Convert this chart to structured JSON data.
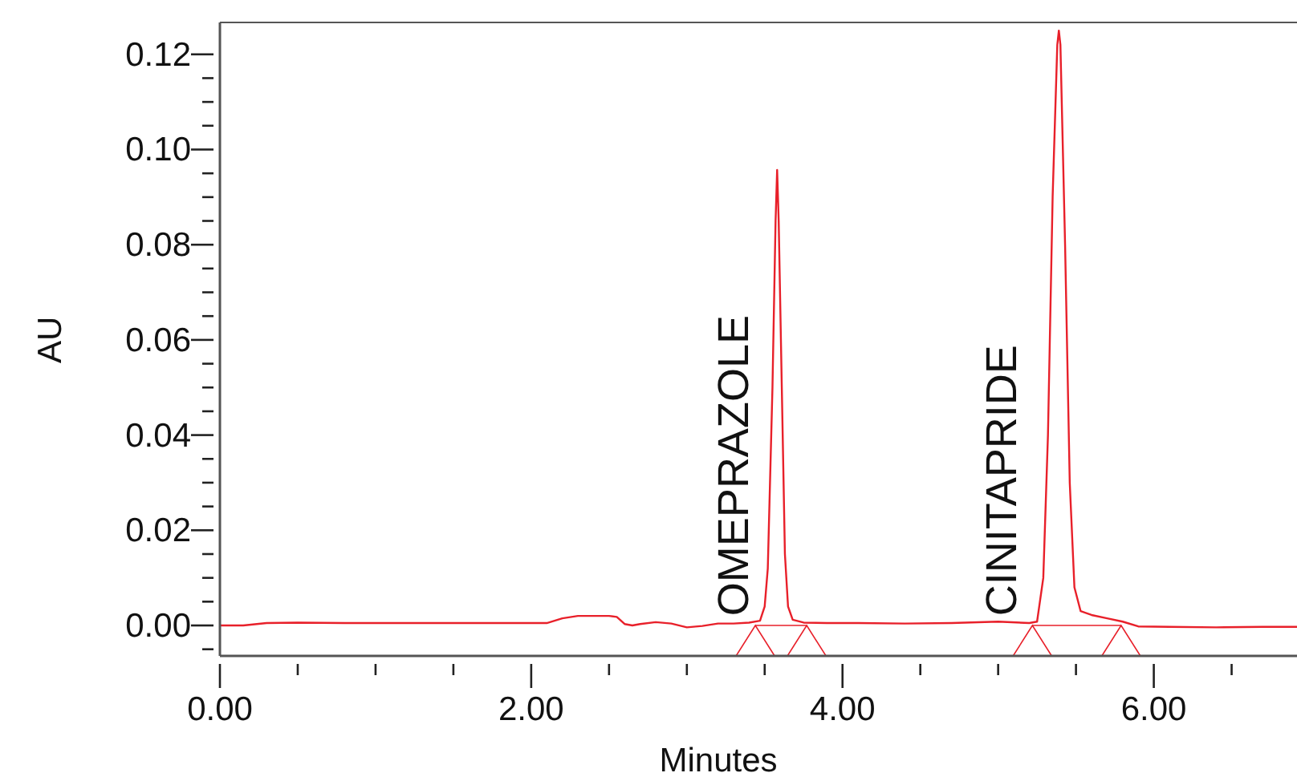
{
  "chart_data": {
    "type": "line",
    "xlabel": "Minutes",
    "ylabel": "AU",
    "xlim": [
      0,
      6.92
    ],
    "ylim": [
      -0.0064,
      0.1267
    ],
    "xticks": [
      {
        "value": 0,
        "label": "0.00"
      },
      {
        "value": 0.5,
        "label": null
      },
      {
        "value": 1,
        "label": null
      },
      {
        "value": 1.5,
        "label": null
      },
      {
        "value": 2,
        "label": "2.00"
      },
      {
        "value": 2.5,
        "label": null
      },
      {
        "value": 3,
        "label": null
      },
      {
        "value": 3.5,
        "label": null
      },
      {
        "value": 4,
        "label": "4.00"
      },
      {
        "value": 4.5,
        "label": null
      },
      {
        "value": 5,
        "label": null
      },
      {
        "value": 5.5,
        "label": null
      },
      {
        "value": 6,
        "label": "6.00"
      },
      {
        "value": 6.5,
        "label": null
      }
    ],
    "yticks": [
      {
        "value": -0.005,
        "label": null
      },
      {
        "value": 0,
        "label": "0.00"
      },
      {
        "value": 0.005,
        "label": null
      },
      {
        "value": 0.01,
        "label": null
      },
      {
        "value": 0.015,
        "label": null
      },
      {
        "value": 0.02,
        "label": "0.02"
      },
      {
        "value": 0.025,
        "label": null
      },
      {
        "value": 0.03,
        "label": null
      },
      {
        "value": 0.035,
        "label": null
      },
      {
        "value": 0.04,
        "label": "0.04"
      },
      {
        "value": 0.045,
        "label": null
      },
      {
        "value": 0.05,
        "label": null
      },
      {
        "value": 0.055,
        "label": null
      },
      {
        "value": 0.06,
        "label": "0.06"
      },
      {
        "value": 0.065,
        "label": null
      },
      {
        "value": 0.07,
        "label": null
      },
      {
        "value": 0.075,
        "label": null
      },
      {
        "value": 0.08,
        "label": "0.08"
      },
      {
        "value": 0.085,
        "label": null
      },
      {
        "value": 0.09,
        "label": null
      },
      {
        "value": 0.095,
        "label": null
      },
      {
        "value": 0.1,
        "label": "0.10"
      },
      {
        "value": 0.105,
        "label": null
      },
      {
        "value": 0.11,
        "label": null
      },
      {
        "value": 0.115,
        "label": null
      },
      {
        "value": 0.12,
        "label": "0.12"
      }
    ],
    "grid": false,
    "marker": "none",
    "line_style": "solid",
    "annotations": [
      {
        "text": "OMEPRAZOLE",
        "x": 3.3,
        "y": 0.002
      },
      {
        "text": "CINITAPRIDE",
        "x": 5.02,
        "y": 0.002
      }
    ],
    "series": [
      {
        "color": "#e8202a",
        "x": [
          0,
          0.15,
          0.3,
          0.5,
          0.8,
          1.2,
          1.6,
          1.9,
          2.1,
          2.2,
          2.3,
          2.4,
          2.5,
          2.55,
          2.6,
          2.65,
          2.7,
          2.8,
          2.9,
          3.0,
          3.1,
          3.2,
          3.3,
          3.4,
          3.47,
          3.5,
          3.52,
          3.55,
          3.57,
          3.58,
          3.59,
          3.61,
          3.63,
          3.65,
          3.68,
          3.75,
          3.9,
          4.1,
          4.4,
          4.7,
          5.0,
          5.2,
          5.25,
          5.29,
          5.32,
          5.35,
          5.38,
          5.39,
          5.4,
          5.43,
          5.46,
          5.49,
          5.53,
          5.6,
          5.7,
          5.8,
          5.9,
          6.1,
          6.4,
          6.7,
          6.92
        ],
        "values": [
          0,
          0,
          0.0005,
          0.0006,
          0.0005,
          0.0005,
          0.0005,
          0.0005,
          0.0005,
          0.0015,
          0.002,
          0.002,
          0.002,
          0.0018,
          0.0003,
          0,
          0.0003,
          0.0007,
          0.0004,
          -0.0004,
          -0.0001,
          0.0004,
          0.0004,
          0.0006,
          0.001,
          0.004,
          0.012,
          0.05,
          0.085,
          0.0957,
          0.085,
          0.05,
          0.015,
          0.004,
          0.0012,
          0.0006,
          0.0005,
          0.0005,
          0.0004,
          0.0005,
          0.0008,
          0.0005,
          0.0008,
          0.01,
          0.04,
          0.09,
          0.122,
          0.125,
          0.122,
          0.08,
          0.03,
          0.008,
          0.003,
          0.0022,
          0.0015,
          0.0008,
          -0.0002,
          -0.0003,
          -0.0004,
          -0.0003,
          -0.0003
        ]
      }
    ]
  }
}
